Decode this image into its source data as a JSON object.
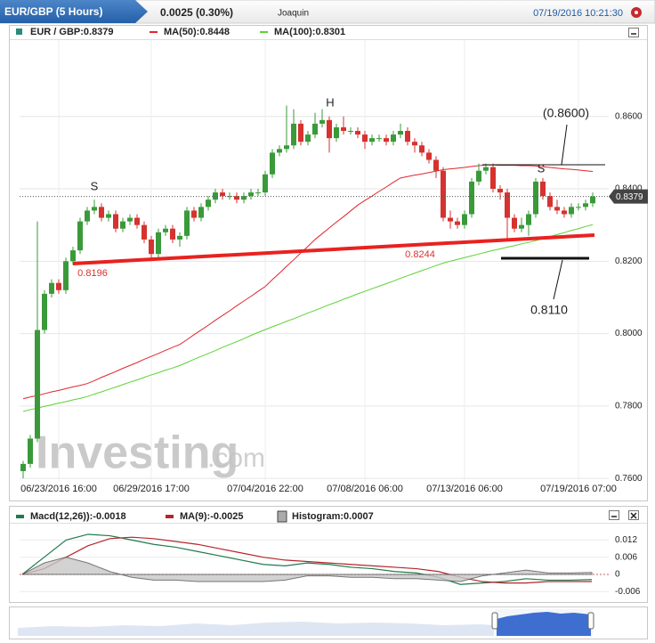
{
  "header": {
    "tab": "EUR/GBP (5 Hours)",
    "change": "0.0025 (0.30%)",
    "user": "Joaquin",
    "datetime": "07/19/2016 10:21:30"
  },
  "chart_data": [
    {
      "type": "candlestick",
      "name": "EUR / GBP:0.8379",
      "categories": [
        null,
        null,
        null,
        null,
        null,
        "06/23/2016 16:00",
        null,
        null,
        null,
        null,
        null,
        null,
        null,
        null,
        null,
        null,
        null,
        null,
        "06/29/2016 17:00",
        null,
        null,
        null,
        null,
        null,
        null,
        null,
        null,
        null,
        null,
        null,
        null,
        null,
        null,
        null,
        "07/04/2016 22:00",
        null,
        null,
        null,
        null,
        null,
        null,
        null,
        null,
        null,
        null,
        null,
        null,
        null,
        "07/08/2016 06:00",
        null,
        null,
        null,
        null,
        null,
        null,
        null,
        null,
        null,
        null,
        null,
        null,
        null,
        "07/13/2016 06:00",
        null,
        null,
        null,
        null,
        null,
        null,
        null,
        null,
        null,
        null,
        null,
        null,
        null,
        null,
        null,
        "07/19/2016 07:00",
        null,
        null
      ],
      "open": [
        0.762,
        0.764,
        0.771,
        0.801,
        0.811,
        0.814,
        0.812,
        0.82,
        0.823,
        0.831,
        0.834,
        0.835,
        0.832,
        0.833,
        0.829,
        0.831,
        0.832,
        0.83,
        0.826,
        0.822,
        0.828,
        0.829,
        0.826,
        0.827,
        0.834,
        0.832,
        0.835,
        0.837,
        0.839,
        0.838,
        0.838,
        0.837,
        0.838,
        0.839,
        0.839,
        0.844,
        0.85,
        0.851,
        0.852,
        0.858,
        0.853,
        0.855,
        0.858,
        0.859,
        0.854,
        0.857,
        0.856,
        0.856,
        0.855,
        0.853,
        0.854,
        0.854,
        0.853,
        0.855,
        0.856,
        0.853,
        0.852,
        0.85,
        0.848,
        0.845,
        0.832,
        0.831,
        0.83,
        0.833,
        0.842,
        0.845,
        0.846,
        0.84,
        0.839,
        0.832,
        0.829,
        0.83,
        0.833,
        0.842,
        0.838,
        0.835,
        0.834,
        0.833,
        0.835,
        0.835,
        0.836
      ],
      "high": [
        0.7648,
        0.772,
        0.831,
        0.812,
        0.815,
        0.815,
        0.821,
        0.824,
        0.832,
        0.835,
        0.837,
        0.836,
        0.834,
        0.834,
        0.832,
        0.833,
        0.833,
        0.831,
        0.827,
        0.829,
        0.83,
        0.83,
        0.828,
        0.835,
        0.835,
        0.836,
        0.838,
        0.84,
        0.84,
        0.839,
        0.839,
        0.839,
        0.84,
        0.84,
        0.845,
        0.851,
        0.852,
        0.863,
        0.862,
        0.859,
        0.856,
        0.861,
        0.862,
        0.86,
        0.858,
        0.86,
        0.857,
        0.857,
        0.856,
        0.855,
        0.855,
        0.855,
        0.856,
        0.858,
        0.857,
        0.854,
        0.853,
        0.851,
        0.849,
        0.846,
        0.834,
        0.832,
        0.834,
        0.843,
        0.847,
        0.847,
        0.847,
        0.841,
        0.84,
        0.833,
        0.832,
        0.834,
        0.843,
        0.843,
        0.839,
        0.837,
        0.835,
        0.836,
        0.836,
        0.837,
        0.839
      ],
      "low": [
        0.76,
        0.763,
        0.77,
        0.8,
        0.81,
        0.811,
        0.811,
        0.819,
        0.822,
        0.83,
        0.833,
        0.831,
        0.831,
        0.828,
        0.828,
        0.83,
        0.829,
        0.825,
        0.82,
        0.821,
        0.827,
        0.825,
        0.824,
        0.826,
        0.831,
        0.831,
        0.834,
        0.836,
        0.837,
        0.837,
        0.836,
        0.836,
        0.837,
        0.838,
        0.838,
        0.843,
        0.849,
        0.85,
        0.851,
        0.852,
        0.852,
        0.854,
        0.857,
        0.85,
        0.853,
        0.855,
        0.855,
        0.854,
        0.851,
        0.852,
        0.853,
        0.852,
        0.852,
        0.854,
        0.852,
        0.85,
        0.849,
        0.847,
        0.843,
        0.831,
        0.829,
        0.829,
        0.829,
        0.832,
        0.841,
        0.844,
        0.839,
        0.837,
        0.826,
        0.828,
        0.828,
        0.827,
        0.832,
        0.837,
        0.834,
        0.833,
        0.832,
        0.832,
        0.834,
        0.834,
        0.835
      ],
      "close": [
        0.764,
        0.771,
        0.801,
        0.811,
        0.814,
        0.812,
        0.82,
        0.823,
        0.831,
        0.834,
        0.835,
        0.832,
        0.833,
        0.829,
        0.831,
        0.832,
        0.83,
        0.826,
        0.822,
        0.828,
        0.829,
        0.826,
        0.827,
        0.834,
        0.832,
        0.835,
        0.837,
        0.839,
        0.838,
        0.838,
        0.837,
        0.838,
        0.839,
        0.839,
        0.844,
        0.85,
        0.851,
        0.852,
        0.858,
        0.853,
        0.855,
        0.858,
        0.859,
        0.854,
        0.857,
        0.856,
        0.856,
        0.855,
        0.853,
        0.854,
        0.854,
        0.853,
        0.855,
        0.856,
        0.853,
        0.852,
        0.85,
        0.848,
        0.845,
        0.832,
        0.831,
        0.83,
        0.833,
        0.842,
        0.845,
        0.846,
        0.84,
        0.839,
        0.832,
        0.829,
        0.83,
        0.833,
        0.842,
        0.838,
        0.835,
        0.834,
        0.833,
        0.835,
        0.835,
        0.836,
        0.8379
      ],
      "up_color": "#3a9a3a",
      "down_color": "#d6322f",
      "series": [
        {
          "name": "MA(50):0.8448",
          "color": "#e0262c",
          "values": [
            0.782,
            0.7825,
            0.7829,
            0.7834,
            0.7839,
            0.7843,
            0.7848,
            0.7853,
            0.7857,
            0.7862,
            0.787,
            0.7879,
            0.7887,
            0.7895,
            0.7904,
            0.7912,
            0.792,
            0.7929,
            0.7937,
            0.7945,
            0.7954,
            0.7962,
            0.797,
            0.7983,
            0.7997,
            0.801,
            0.8023,
            0.8037,
            0.805,
            0.8063,
            0.8077,
            0.809,
            0.8103,
            0.8117,
            0.813,
            0.8149,
            0.8167,
            0.8186,
            0.8204,
            0.8223,
            0.8241,
            0.826,
            0.8276,
            0.8292,
            0.8308,
            0.8323,
            0.8339,
            0.8355,
            0.8368,
            0.838,
            0.8393,
            0.8405,
            0.8418,
            0.843,
            0.8434,
            0.8438,
            0.8441,
            0.8445,
            0.8449,
            0.8453,
            0.8455,
            0.8457,
            0.8459,
            0.8462,
            0.8464,
            0.8466,
            0.8466,
            0.8465,
            0.8465,
            0.8465,
            0.8464,
            0.8464,
            0.8463,
            0.8461,
            0.8459,
            0.8457,
            0.8455,
            0.8454,
            0.8452,
            0.845,
            0.8448
          ]
        },
        {
          "name": "MA(100):0.8301",
          "color": "#5cd233",
          "values": [
            0.7785,
            0.779,
            0.7794,
            0.7799,
            0.7803,
            0.7808,
            0.7812,
            0.7817,
            0.7821,
            0.7826,
            0.7833,
            0.7839,
            0.7846,
            0.7852,
            0.7859,
            0.7866,
            0.7872,
            0.7879,
            0.7886,
            0.7892,
            0.7899,
            0.7905,
            0.7912,
            0.792,
            0.7929,
            0.7937,
            0.7945,
            0.7953,
            0.7962,
            0.797,
            0.7978,
            0.7986,
            0.7995,
            0.8003,
            0.8011,
            0.8019,
            0.8026,
            0.8034,
            0.8041,
            0.8049,
            0.8057,
            0.8064,
            0.8072,
            0.808,
            0.8087,
            0.8095,
            0.8102,
            0.811,
            0.8117,
            0.8124,
            0.8131,
            0.8138,
            0.8145,
            0.8153,
            0.816,
            0.8167,
            0.8174,
            0.8181,
            0.8188,
            0.8195,
            0.82,
            0.8205,
            0.821,
            0.8215,
            0.822,
            0.8225,
            0.823,
            0.8234,
            0.8239,
            0.8243,
            0.8248,
            0.8252,
            0.8257,
            0.8263,
            0.8268,
            0.8274,
            0.8279,
            0.8285,
            0.829,
            0.8296,
            0.8301
          ]
        }
      ],
      "ylim": [
        0.7593,
        0.8811
      ],
      "yticks": [
        {
          "value": 0.76,
          "label": "0.7600"
        },
        {
          "value": 0.78,
          "label": "0.7800"
        },
        {
          "value": 0.8,
          "label": "0.8000"
        },
        {
          "value": 0.82,
          "label": "0.8200"
        },
        {
          "value": 0.84,
          "label": "0.8400"
        },
        {
          "value": 0.86,
          "label": "0.8600"
        }
      ],
      "grid": true,
      "last_price": 0.8379,
      "annotations": [
        "S",
        "H",
        "S",
        "(0.8600)",
        "0.8110",
        "0.8196",
        "0.8244"
      ],
      "watermark": "Investing",
      "watermark_suffix": ".com"
    },
    {
      "type": "line",
      "categories": [
        null,
        null,
        null,
        null,
        null,
        null,
        null,
        null,
        null,
        null,
        null,
        null,
        null,
        null,
        null,
        null,
        null,
        null,
        null,
        null,
        null,
        null,
        null,
        null,
        null,
        null,
        null
      ],
      "series": [
        {
          "name": "Macd(12,26)):-0.0018",
          "color": "#1f7a4f",
          "values": [
            0.0,
            0.006,
            0.012,
            0.014,
            0.0135,
            0.012,
            0.0105,
            0.0095,
            0.008,
            0.0065,
            0.005,
            0.0035,
            0.003,
            0.004,
            0.0035,
            0.0025,
            0.002,
            0.001,
            0.0005,
            -0.001,
            -0.0035,
            -0.003,
            -0.0025,
            -0.0015,
            -0.002,
            -0.002,
            -0.0018
          ]
        },
        {
          "name": "MA(9):-0.0025",
          "color": "#b3262a",
          "values": [
            0.0,
            0.002,
            0.006,
            0.01,
            0.0125,
            0.013,
            0.0125,
            0.0115,
            0.0105,
            0.009,
            0.0075,
            0.006,
            0.005,
            0.0045,
            0.004,
            0.0035,
            0.003,
            0.0025,
            0.002,
            0.001,
            -0.001,
            -0.0025,
            -0.003,
            -0.003,
            -0.0025,
            -0.0025,
            -0.0025
          ]
        },
        {
          "name": "Histogram:0.0007",
          "color": "#9a9a9a",
          "style": "area",
          "values": [
            0.0,
            0.004,
            0.006,
            0.004,
            0.001,
            -0.001,
            -0.002,
            -0.002,
            -0.0025,
            -0.0025,
            -0.0025,
            -0.0025,
            -0.002,
            -0.0005,
            -0.0005,
            -0.001,
            -0.001,
            -0.0015,
            -0.0015,
            -0.002,
            -0.0025,
            -0.0005,
            0.0005,
            0.0015,
            0.0005,
            0.0005,
            0.0007
          ]
        }
      ],
      "ylim": [
        -0.0084,
        0.0171
      ],
      "yticks": [
        0.012,
        0.006,
        0,
        -0.006
      ],
      "grid": true
    }
  ]
}
